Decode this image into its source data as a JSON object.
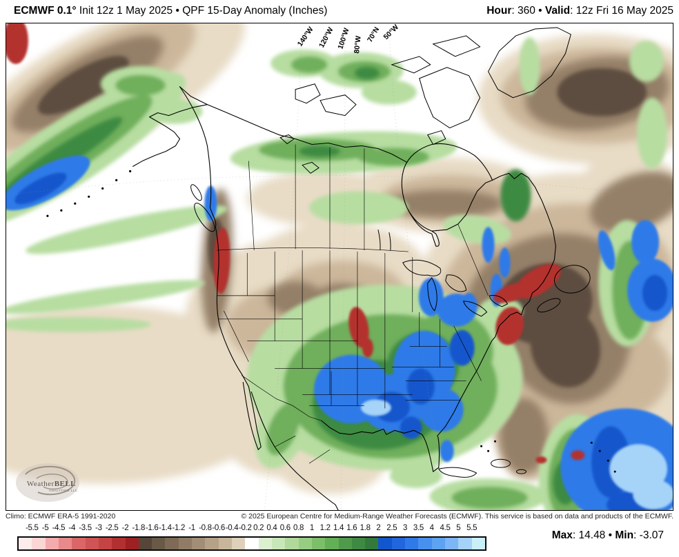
{
  "header": {
    "model_bold": "ECMWF 0.1°",
    "title_rest": " Init 12z 1 May 2025 • QPF 15-Day Anomaly (Inches)",
    "hour_label": "Hour",
    "hour_value": ": 360",
    "separator": " • ",
    "valid_label": "Valid",
    "valid_value": ": 12z Fri 16 May 2025"
  },
  "map": {
    "lon_labels": [
      "140°W",
      "120°W",
      "100°W",
      "80°W",
      "70°N",
      "50°W"
    ],
    "logo": {
      "name_left": "Weather",
      "name_right": "BELL",
      "subtitle": "ANALYTICS LLC"
    },
    "palette": {
      "extreme_dry_red": "#b4302f",
      "dry_dark_brown": "#5d4d3f",
      "dry_brown": "#947f67",
      "dry_tan": "#ccb79b",
      "dry_tan_light": "#e8dcc6",
      "wet_green_light": "#b7dda1",
      "wet_green": "#6faf5b",
      "wet_green_dark": "#3e8a42",
      "wet_blue": "#2f7ae8",
      "wet_blue_dark": "#1356cc",
      "wet_blue_pale": "#a6d3f8",
      "neutral_white": "#ffffff",
      "coastline": "#000000"
    }
  },
  "footer": {
    "climo": "Climo: ECMWF ERA-5 1991-2020",
    "copyright": "© 2025 European Centre for Medium-Range Weather Forecasts (ECMWF). This service is based on data and products of the ECMWF."
  },
  "colorbar": {
    "labels": [
      "-5.5",
      "-5",
      "-4.5",
      "-4",
      "-3.5",
      "-3",
      "-2.5",
      "-2",
      "-1.8",
      "-1.6",
      "-1.4",
      "-1.2",
      "-1",
      "-0.8",
      "-0.6",
      "-0.4",
      "-0.2",
      "0.2",
      "0.4",
      "0.6",
      "0.8",
      "1",
      "1.2",
      "1.4",
      "1.6",
      "1.8",
      "2",
      "2.5",
      "3",
      "3.5",
      "4",
      "4.5",
      "5",
      "5.5"
    ],
    "colors": [
      "#fdeceb",
      "#fbd6d4",
      "#f3abad",
      "#e8898b",
      "#da6667",
      "#d05355",
      "#c64344",
      "#b23031",
      "#9d2023",
      "#554638",
      "#695947",
      "#7d6b57",
      "#907c66",
      "#a28e76",
      "#b5a187",
      "#c8b69a",
      "#ded0bb",
      "#ffffff",
      "#dcefcf",
      "#c9e6b8",
      "#b0d99b",
      "#96cd83",
      "#7cbe69",
      "#63af55",
      "#4f9b4b",
      "#3f8a43",
      "#34793c",
      "#1356cc",
      "#2266dd",
      "#2f7ae8",
      "#4990ee",
      "#5ea2f2",
      "#7db6f6",
      "#a5d2f8",
      "#c9f0f8"
    ]
  },
  "stats": {
    "max_label": "Max",
    "max_value": ": 14.48",
    "separator": " • ",
    "min_label": "Min",
    "min_value": ": -3.07"
  }
}
